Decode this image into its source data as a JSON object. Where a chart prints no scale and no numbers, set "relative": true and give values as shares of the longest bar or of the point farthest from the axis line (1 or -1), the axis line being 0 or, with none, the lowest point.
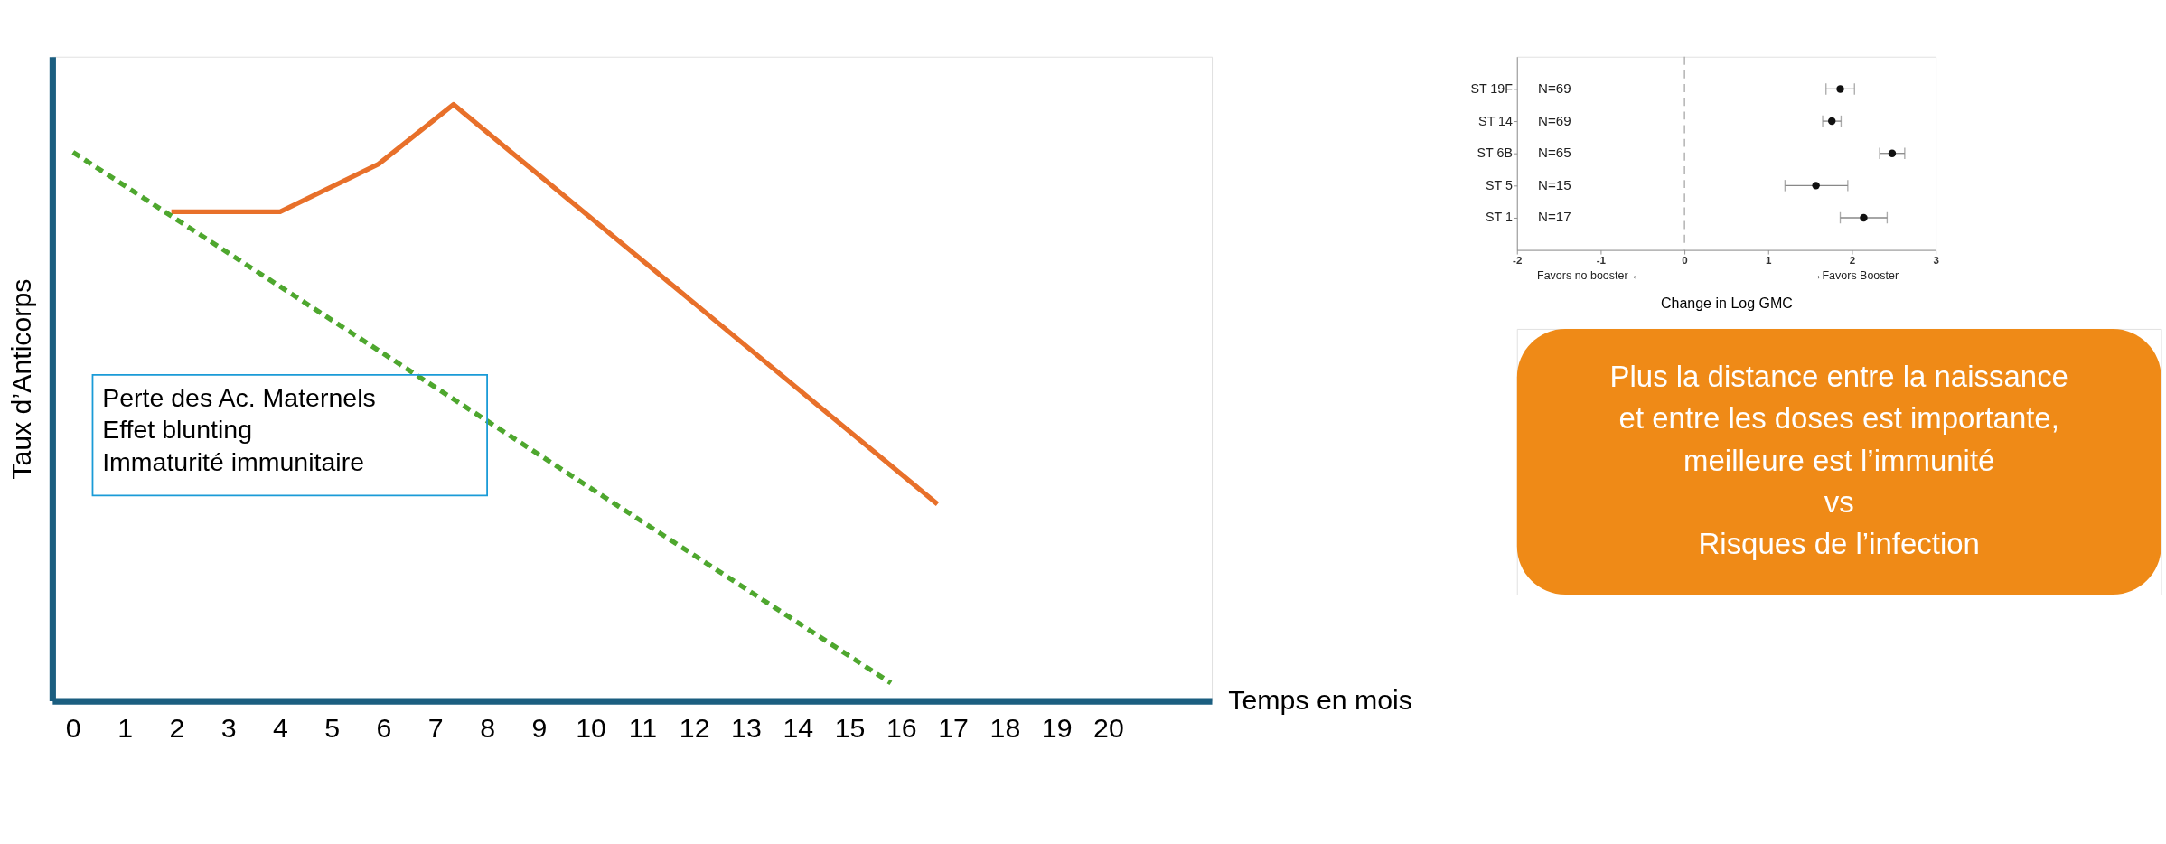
{
  "chart_data": [
    {
      "type": "line",
      "relative": true,
      "xlabel": "Temps en mois",
      "ylabel": "Taux d’Anticorps",
      "xlim": [
        -0.4,
        22
      ],
      "xticks": [
        0,
        1,
        2,
        3,
        4,
        5,
        6,
        7,
        8,
        9,
        10,
        11,
        12,
        13,
        14,
        15,
        16,
        17,
        18,
        19,
        20
      ],
      "tick_labels": "x",
      "grid": false,
      "series": [
        {
          "color": "#e8702a",
          "line_style": "solid",
          "x": [
            1.9,
            4.0,
            5.9,
            7.35,
            16.7
          ],
          "values": [
            0.82,
            0.82,
            0.9,
            1,
            0.33
          ]
        },
        {
          "color": "#4ea72e",
          "line_style": "dashed",
          "x": [
            0,
            15.8
          ],
          "values": [
            0.92,
            0.03
          ]
        }
      ],
      "annotations": [
        "Perte des Ac. Maternels\nEffet blunting\nImmaturité immunitaire",
        "Plus la distance entre la naissance\net entre les doses est importante,\nmeilleure est l’immunité\nvs\nRisques de l’infection"
      ]
    },
    {
      "type": "scatter",
      "orientation": "horizontal",
      "xlabel": "Change in Log GMC",
      "xlim": [
        -2,
        3
      ],
      "xticks": [
        -2,
        -1,
        0,
        1,
        2,
        3
      ],
      "grid": false,
      "marker": "circle",
      "categories": [
        "ST 19F",
        "ST 14",
        "ST 6B",
        "ST 5",
        "ST 1"
      ],
      "series": [
        {
          "color": "#111111",
          "values": [
            1.86,
            1.76,
            2.48,
            1.57,
            2.14
          ],
          "errors": [
            [
              1.69,
              2.03
            ],
            [
              1.65,
              1.87
            ],
            [
              2.33,
              2.63
            ],
            [
              1.2,
              1.95
            ],
            [
              1.86,
              2.42
            ]
          ]
        }
      ],
      "ref_lines": [
        {
          "axis": "x",
          "value": 0,
          "color": "#aaaaaa",
          "line_style": "dashed"
        }
      ],
      "annotations": [
        "N=69",
        "N=69",
        "N=65",
        "N=15",
        "N=17",
        "Favors no booster ←",
        "→Favors Booster"
      ]
    }
  ]
}
